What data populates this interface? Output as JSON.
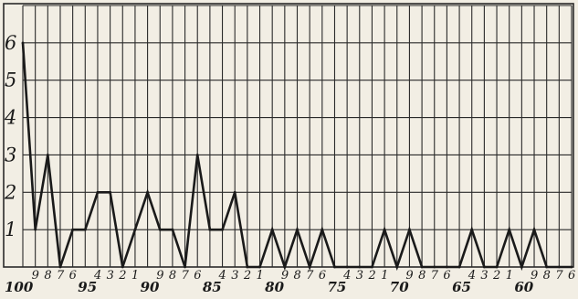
{
  "chart_data": {
    "type": "line",
    "title": "",
    "xlabel": "",
    "ylabel": "",
    "grid": true,
    "x": [
      100,
      99,
      98,
      97,
      96,
      95,
      94,
      93,
      92,
      91,
      90,
      89,
      88,
      87,
      86,
      85,
      84,
      83,
      82,
      81,
      80,
      79,
      78,
      77,
      76,
      75,
      74,
      73,
      72,
      71,
      70,
      69,
      68,
      67,
      66,
      65,
      64,
      63,
      62,
      61,
      60,
      59,
      58,
      57,
      56
    ],
    "x_tick_labels": [
      "100",
      "9",
      "8",
      "7",
      "6",
      "95",
      "4",
      "3",
      "2",
      "1",
      "90",
      "9",
      "8",
      "7",
      "6",
      "85",
      "4",
      "3",
      "2",
      "1",
      "80",
      "9",
      "8",
      "7",
      "6",
      "75",
      "4",
      "3",
      "2",
      "1",
      "70",
      "9",
      "8",
      "7",
      "6",
      "65",
      "4",
      "3",
      "2",
      "1",
      "60",
      "9",
      "8",
      "7",
      "6"
    ],
    "major_ticks": [
      "100",
      "95",
      "90",
      "85",
      "80",
      "75",
      "70",
      "65",
      "60"
    ],
    "values": [
      6,
      1,
      3,
      0,
      1,
      1,
      2,
      2,
      0,
      1,
      2,
      1,
      1,
      0,
      3,
      1,
      1,
      2,
      0,
      0,
      1,
      0,
      1,
      0,
      1,
      0,
      0,
      0,
      0,
      1,
      0,
      1,
      0,
      0,
      0,
      0,
      1,
      0,
      0,
      1,
      0,
      1,
      0,
      0,
      0
    ],
    "y_ticks": [
      1,
      2,
      3,
      4,
      5,
      6
    ],
    "ylim": [
      0,
      7
    ],
    "xlim": [
      100,
      56
    ]
  }
}
